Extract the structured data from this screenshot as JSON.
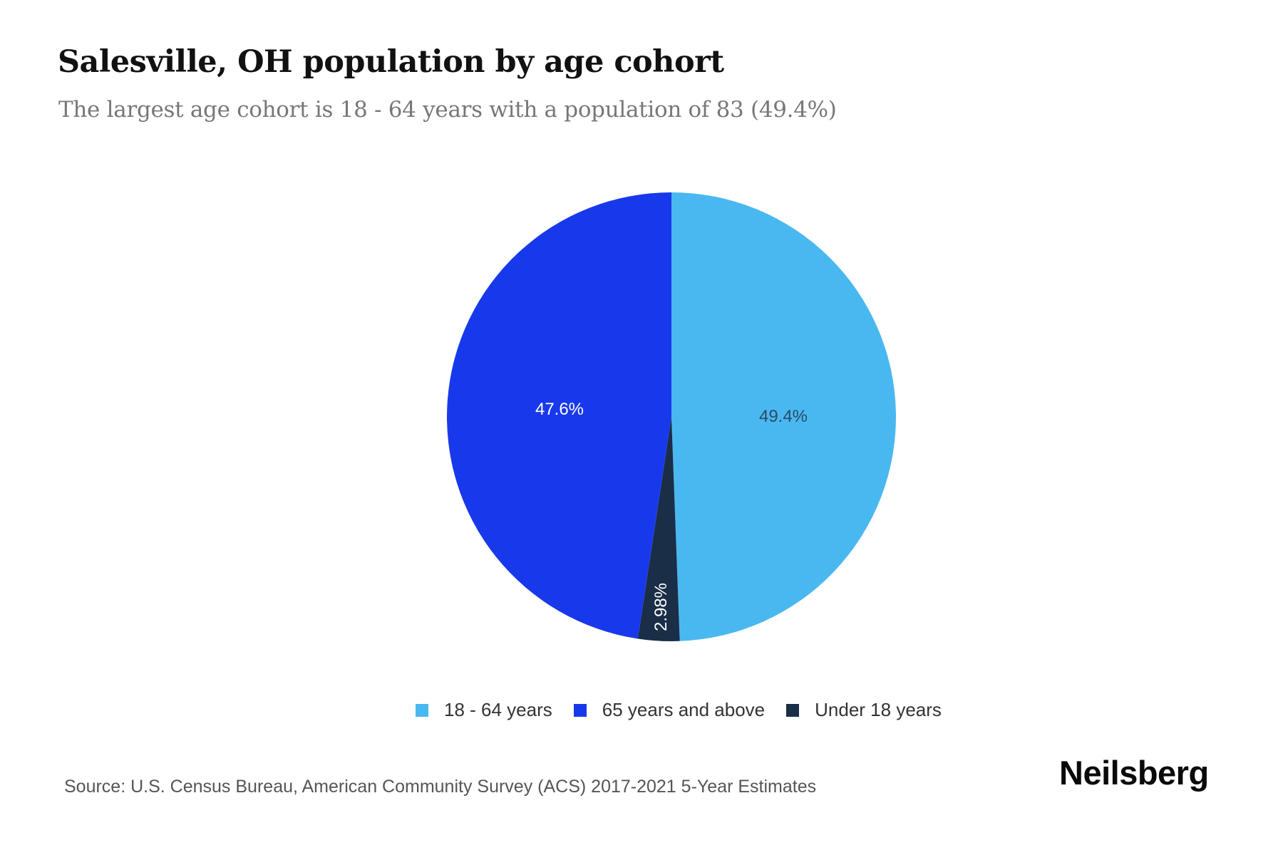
{
  "header": {
    "title": "Salesville, OH population by age cohort",
    "subtitle": "The largest age cohort is 18 - 64 years with a population of 83 (49.4%)"
  },
  "legend": [
    {
      "label": "18 - 64 years",
      "color": "#4AB8F0"
    },
    {
      "label": "65 years and above",
      "color": "#1839EB"
    },
    {
      "label": "Under 18 years",
      "color": "#1A2E48"
    }
  ],
  "slices": [
    {
      "label": "49.4%",
      "color": "#4AB8F0",
      "label_color": "#2a4a66"
    },
    {
      "label": "2.98%",
      "color": "#1A2E48",
      "label_color": "#ffffff"
    },
    {
      "label": "47.6%",
      "color": "#1839EB",
      "label_color": "#ffffff"
    }
  ],
  "footer": {
    "source": "Source: U.S. Census Bureau, American Community Survey (ACS) 2017-2021 5-Year Estimates",
    "logo": "Neilsberg"
  },
  "chart_data": {
    "type": "pie",
    "title": "Salesville, OH population by age cohort",
    "subtitle": "The largest age cohort is 18 - 64 years with a population of 83 (49.4%)",
    "categories": [
      "18 - 64 years",
      "Under 18 years",
      "65 years and above"
    ],
    "values": [
      49.4,
      2.98,
      47.6
    ],
    "units": "percent",
    "data_labels": [
      "49.4%",
      "2.98%",
      "47.6%"
    ],
    "colors": [
      "#4AB8F0",
      "#1A2E48",
      "#1839EB"
    ],
    "start_angle": "12 o'clock, clockwise",
    "legend_position": "bottom",
    "legend": [
      "18 - 64 years",
      "65 years and above",
      "Under 18 years"
    ],
    "annotations": {
      "largest_cohort_population": 83
    },
    "source": "Source: U.S. Census Bureau, American Community Survey (ACS) 2017-2021 5-Year Estimates"
  }
}
